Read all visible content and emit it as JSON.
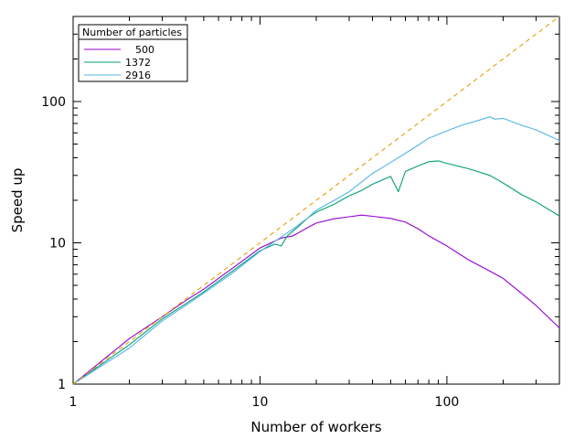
{
  "chart_data": {
    "type": "line",
    "x_scale": "log",
    "y_scale": "log",
    "xlim": [
      1,
      400
    ],
    "ylim": [
      1,
      400
    ],
    "xlabel": "Number of workers",
    "ylabel": "Speed up",
    "x_tick_labels": [
      "1",
      "10",
      "100"
    ],
    "y_tick_labels": [
      "1",
      "10",
      "100"
    ],
    "x_ticks": [
      1,
      10,
      100
    ],
    "y_ticks": [
      1,
      10,
      100
    ],
    "grid": false,
    "legend": {
      "title": "Number of particles",
      "placement": "top-left"
    },
    "series": [
      {
        "name": "500",
        "color": "#9400d3",
        "style": "solid",
        "x": [
          1,
          2,
          3,
          4,
          5,
          7,
          10,
          13,
          15,
          18,
          20,
          25,
          30,
          35,
          40,
          50,
          60,
          70,
          80,
          100,
          130,
          170,
          200,
          250,
          300,
          400
        ],
        "y": [
          1,
          2.1,
          3.0,
          3.9,
          4.7,
          6.5,
          9.2,
          10.8,
          11.2,
          12.8,
          13.8,
          14.8,
          15.3,
          15.7,
          15.4,
          14.9,
          14.0,
          12.6,
          11.2,
          9.5,
          7.6,
          6.3,
          5.6,
          4.4,
          3.6,
          2.5
        ]
      },
      {
        "name": "1372",
        "color": "#009e73",
        "style": "solid",
        "x": [
          1,
          2,
          3,
          4,
          5,
          7,
          10,
          12,
          13,
          14,
          16,
          18,
          20,
          25,
          30,
          35,
          40,
          50,
          55,
          60,
          70,
          80,
          90,
          100,
          130,
          170,
          200,
          250,
          300,
          400
        ],
        "y": [
          1,
          1.9,
          2.9,
          3.7,
          4.5,
          6.2,
          8.8,
          9.8,
          9.5,
          11.2,
          13.0,
          15.0,
          16.5,
          18.8,
          21.5,
          23.5,
          26.0,
          29.5,
          23.0,
          32.0,
          35.0,
          37.5,
          38.0,
          36.5,
          33.5,
          30.0,
          26.5,
          22.0,
          19.5,
          15.5
        ]
      },
      {
        "name": "2916",
        "color": "#56b4e9",
        "style": "solid",
        "x": [
          1,
          2,
          3,
          4,
          5,
          7,
          10,
          13,
          15,
          18,
          20,
          25,
          30,
          35,
          40,
          50,
          60,
          70,
          80,
          100,
          120,
          150,
          170,
          180,
          200,
          250,
          300,
          400
        ],
        "y": [
          1,
          1.8,
          2.8,
          3.6,
          4.4,
          6.0,
          8.7,
          11.0,
          12.5,
          15.0,
          17.0,
          20.0,
          23.0,
          27.0,
          31.0,
          37.0,
          43.0,
          49.0,
          55.0,
          62.0,
          68.0,
          74.0,
          78.0,
          75.0,
          76.0,
          68.0,
          63.0,
          53.0
        ]
      },
      {
        "name": "",
        "color": "#e69f00",
        "style": "dashed",
        "x": [
          1,
          400
        ],
        "y": [
          1,
          400
        ]
      }
    ]
  }
}
